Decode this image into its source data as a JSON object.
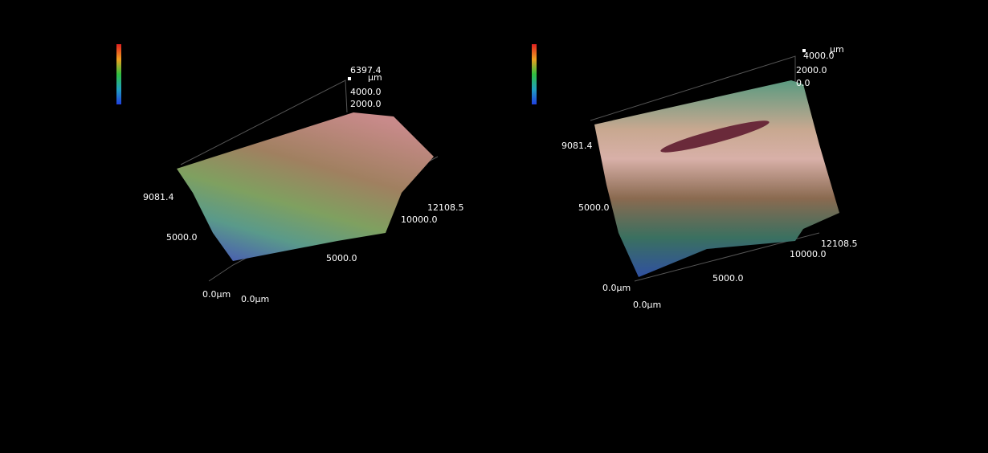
{
  "panels": [
    {
      "z_max": "6397.4",
      "z_unit": "µm",
      "z_ticks": [
        "4000.0",
        "2000.0"
      ],
      "y_max": "9081.4",
      "y_ticks": [
        "5000.0"
      ],
      "y_origin": "0.0µm",
      "x_origin": "0.0µm",
      "x_ticks": [
        "5000.0",
        "10000.0"
      ],
      "x_max": "12108.5"
    },
    {
      "z_unit": "µm",
      "z_ticks": [
        "4000.0",
        "2000.0",
        "0.0"
      ],
      "y_max": "9081.4",
      "y_ticks": [
        "5000.0"
      ],
      "y_origin": "0.0µm",
      "x_origin": "0.0µm",
      "x_ticks": [
        "5000.0",
        "10000.0"
      ],
      "x_max": "12108.5"
    }
  ]
}
